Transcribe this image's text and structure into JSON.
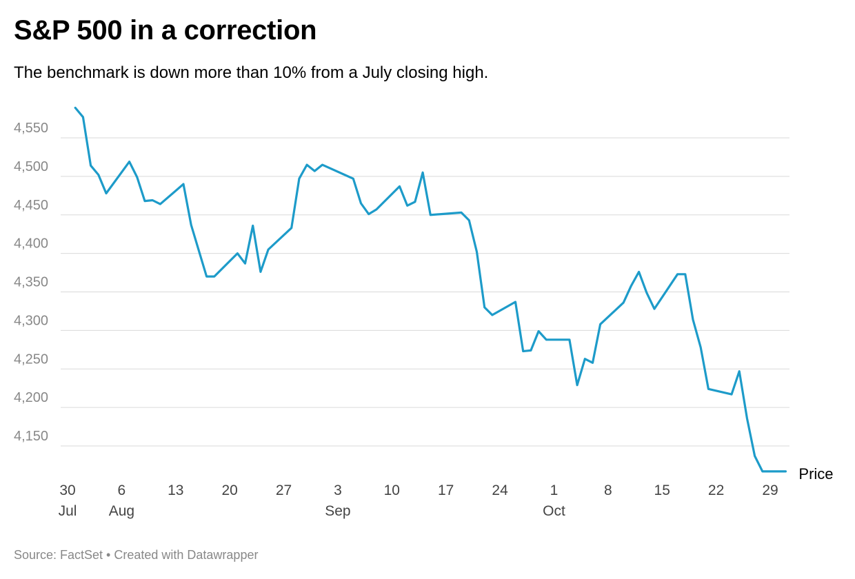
{
  "chart_data": {
    "type": "line",
    "title": "S&P 500 in a correction",
    "subtitle": "The benchmark is down more than 10% from a July closing high.",
    "xlabel": "",
    "ylabel": "",
    "ylim": [
      4110,
      4590
    ],
    "y_ticks": [
      4150,
      4200,
      4250,
      4300,
      4350,
      4400,
      4450,
      4500,
      4550
    ],
    "y_tick_labels": [
      "4,150",
      "4,200",
      "4,250",
      "4,300",
      "4,350",
      "4,400",
      "4,450",
      "4,500",
      "4,550"
    ],
    "grid": true,
    "x_range": [
      0,
      92
    ],
    "x_ticks": [
      {
        "x": 0,
        "day": "30",
        "month": "Jul"
      },
      {
        "x": 7,
        "day": "6",
        "month": "Aug"
      },
      {
        "x": 14,
        "day": "13",
        "month": ""
      },
      {
        "x": 21,
        "day": "20",
        "month": ""
      },
      {
        "x": 28,
        "day": "27",
        "month": ""
      },
      {
        "x": 35,
        "day": "3",
        "month": "Sep"
      },
      {
        "x": 42,
        "day": "10",
        "month": ""
      },
      {
        "x": 49,
        "day": "17",
        "month": ""
      },
      {
        "x": 56,
        "day": "24",
        "month": ""
      },
      {
        "x": 63,
        "day": "1",
        "month": "Oct"
      },
      {
        "x": 70,
        "day": "8",
        "month": ""
      },
      {
        "x": 77,
        "day": "15",
        "month": ""
      },
      {
        "x": 84,
        "day": "22",
        "month": ""
      },
      {
        "x": 91,
        "day": "29",
        "month": ""
      }
    ],
    "series": [
      {
        "name": "Price",
        "color": "#1d9bc9",
        "points": [
          [
            1,
            4589
          ],
          [
            2,
            4577
          ],
          [
            3,
            4514
          ],
          [
            4,
            4502
          ],
          [
            5,
            4478
          ],
          [
            8,
            4519
          ],
          [
            9,
            4499
          ],
          [
            10,
            4468
          ],
          [
            11,
            4469
          ],
          [
            12,
            4464
          ],
          [
            15,
            4490
          ],
          [
            16,
            4437
          ],
          [
            18,
            4370
          ],
          [
            19,
            4370
          ],
          [
            22,
            4400
          ],
          [
            23,
            4387
          ],
          [
            24,
            4436
          ],
          [
            25,
            4376
          ],
          [
            26,
            4405
          ],
          [
            29,
            4433
          ],
          [
            30,
            4497
          ],
          [
            31,
            4515
          ],
          [
            32,
            4507
          ],
          [
            33,
            4515
          ],
          [
            37,
            4497
          ],
          [
            38,
            4465
          ],
          [
            39,
            4451
          ],
          [
            40,
            4457
          ],
          [
            43,
            4487
          ],
          [
            44,
            4462
          ],
          [
            45,
            4467
          ],
          [
            46,
            4505
          ],
          [
            47,
            4450
          ],
          [
            51,
            4453
          ],
          [
            52,
            4443
          ],
          [
            53,
            4402
          ],
          [
            54,
            4330
          ],
          [
            55,
            4320
          ],
          [
            58,
            4337
          ],
          [
            59,
            4273
          ],
          [
            60,
            4274
          ],
          [
            61,
            4299
          ],
          [
            62,
            4288
          ],
          [
            65,
            4288
          ],
          [
            66,
            4229
          ],
          [
            67,
            4263
          ],
          [
            68,
            4258
          ],
          [
            69,
            4308
          ],
          [
            72,
            4336
          ],
          [
            73,
            4358
          ],
          [
            74,
            4376
          ],
          [
            75,
            4349
          ],
          [
            76,
            4328
          ],
          [
            79,
            4373
          ],
          [
            80,
            4373
          ],
          [
            81,
            4314
          ],
          [
            82,
            4278
          ],
          [
            83,
            4224
          ],
          [
            86,
            4217
          ],
          [
            87,
            4247
          ],
          [
            88,
            4186
          ],
          [
            89,
            4137
          ],
          [
            90,
            4117
          ],
          [
            93,
            4117
          ]
        ]
      }
    ],
    "series_label": "Price"
  },
  "footer": "Source: FactSet • Created with Datawrapper",
  "colors": {
    "line": "#1d9bc9",
    "grid": "#d9d9d9",
    "axis_text": "#888888"
  }
}
